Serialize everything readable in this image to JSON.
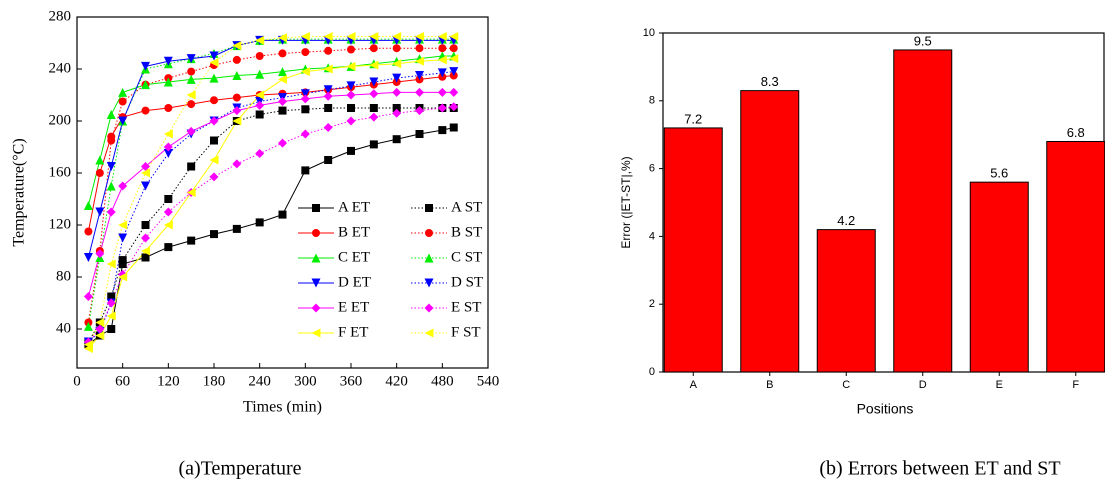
{
  "chart_data": [
    {
      "type": "line",
      "y_label": "Temperature(°C)",
      "x_label": "Times (min)",
      "caption": "(a)Temperature",
      "xlim": [
        0,
        540
      ],
      "xticks": [
        0,
        60,
        120,
        180,
        240,
        300,
        360,
        420,
        480,
        540
      ],
      "ylim": [
        10,
        280
      ],
      "yticks": [
        40,
        80,
        120,
        160,
        200,
        240,
        280
      ],
      "x": [
        15,
        30,
        45,
        60,
        90,
        120,
        150,
        180,
        210,
        240,
        270,
        300,
        330,
        360,
        390,
        420,
        450,
        480,
        495
      ],
      "series": [
        {
          "name": "A ET",
          "color": "#000000",
          "marker": "square",
          "dash": "solid",
          "values": [
            28,
            35,
            40,
            90,
            95,
            103,
            108,
            113,
            117,
            122,
            128,
            162,
            170,
            177,
            182,
            186,
            190,
            193,
            195
          ]
        },
        {
          "name": "A ST",
          "color": "#000000",
          "marker": "square",
          "dash": "dotted",
          "values": [
            30,
            45,
            65,
            93,
            120,
            140,
            165,
            185,
            200,
            205,
            208,
            209,
            210,
            210,
            210,
            210,
            210,
            210,
            210
          ]
        },
        {
          "name": "B ET",
          "color": "#ff0000",
          "marker": "circle",
          "dash": "solid",
          "values": [
            115,
            160,
            188,
            203,
            208,
            210,
            213,
            216,
            218,
            220,
            221,
            222,
            224,
            226,
            228,
            230,
            232,
            234,
            235
          ]
        },
        {
          "name": "B ST",
          "color": "#ff0000",
          "marker": "circle",
          "dash": "dotted",
          "values": [
            45,
            100,
            185,
            215,
            228,
            233,
            238,
            243,
            247,
            250,
            252,
            253,
            254,
            255,
            256,
            256,
            256,
            256,
            256
          ]
        },
        {
          "name": "C ET",
          "color": "#00ee00",
          "marker": "up",
          "dash": "solid",
          "values": [
            135,
            170,
            205,
            222,
            228,
            230,
            232,
            233,
            235,
            236,
            238,
            240,
            241,
            242,
            244,
            246,
            248,
            250,
            250
          ]
        },
        {
          "name": "C ST",
          "color": "#00ee00",
          "marker": "up",
          "dash": "dotted",
          "values": [
            42,
            95,
            150,
            200,
            240,
            244,
            248,
            252,
            258,
            262,
            263,
            263,
            263,
            263,
            263,
            263,
            263,
            263,
            263
          ]
        },
        {
          "name": "D ET",
          "color": "#0000ff",
          "marker": "down",
          "dash": "solid",
          "values": [
            95,
            130,
            165,
            200,
            242,
            246,
            248,
            250,
            258,
            262,
            262,
            262,
            262,
            262,
            262,
            262,
            262,
            262,
            262
          ]
        },
        {
          "name": "D ST",
          "color": "#0000ff",
          "marker": "down",
          "dash": "dotted",
          "values": [
            30,
            38,
            60,
            110,
            150,
            175,
            190,
            200,
            210,
            215,
            218,
            221,
            224,
            227,
            230,
            233,
            235,
            237,
            238
          ]
        },
        {
          "name": "E ET",
          "color": "#ff00ff",
          "marker": "diamond",
          "dash": "solid",
          "values": [
            65,
            98,
            130,
            150,
            165,
            180,
            192,
            200,
            208,
            212,
            215,
            217,
            219,
            220,
            221,
            222,
            222,
            222,
            222
          ]
        },
        {
          "name": "E ST",
          "color": "#ff00ff",
          "marker": "diamond",
          "dash": "dotted",
          "values": [
            30,
            40,
            60,
            82,
            110,
            130,
            145,
            157,
            167,
            175,
            183,
            190,
            195,
            200,
            203,
            206,
            208,
            210,
            211
          ]
        },
        {
          "name": "F ET",
          "color": "#ffff00",
          "marker": "left",
          "dash": "solid",
          "values": [
            25,
            35,
            50,
            80,
            100,
            120,
            145,
            170,
            200,
            220,
            232,
            238,
            240,
            242,
            243,
            244,
            246,
            247,
            248
          ]
        },
        {
          "name": "F ST",
          "color": "#ffff00",
          "marker": "left",
          "dash": "dotted",
          "values": [
            28,
            45,
            90,
            120,
            160,
            190,
            220,
            245,
            258,
            262,
            264,
            265,
            265,
            265,
            265,
            265,
            265,
            265,
            265
          ]
        }
      ]
    },
    {
      "type": "bar",
      "y_label": "Error (|ET-ST|,%)",
      "x_label": "Positions",
      "caption": "(b) Errors between ET and ST",
      "categories": [
        "A",
        "B",
        "C",
        "D",
        "E",
        "F"
      ],
      "values": [
        7.2,
        8.3,
        4.2,
        9.5,
        5.6,
        6.8
      ],
      "color": "#ff0000",
      "ylim": [
        0,
        10
      ],
      "yticks": [
        0,
        2,
        4,
        6,
        8,
        10
      ]
    }
  ]
}
